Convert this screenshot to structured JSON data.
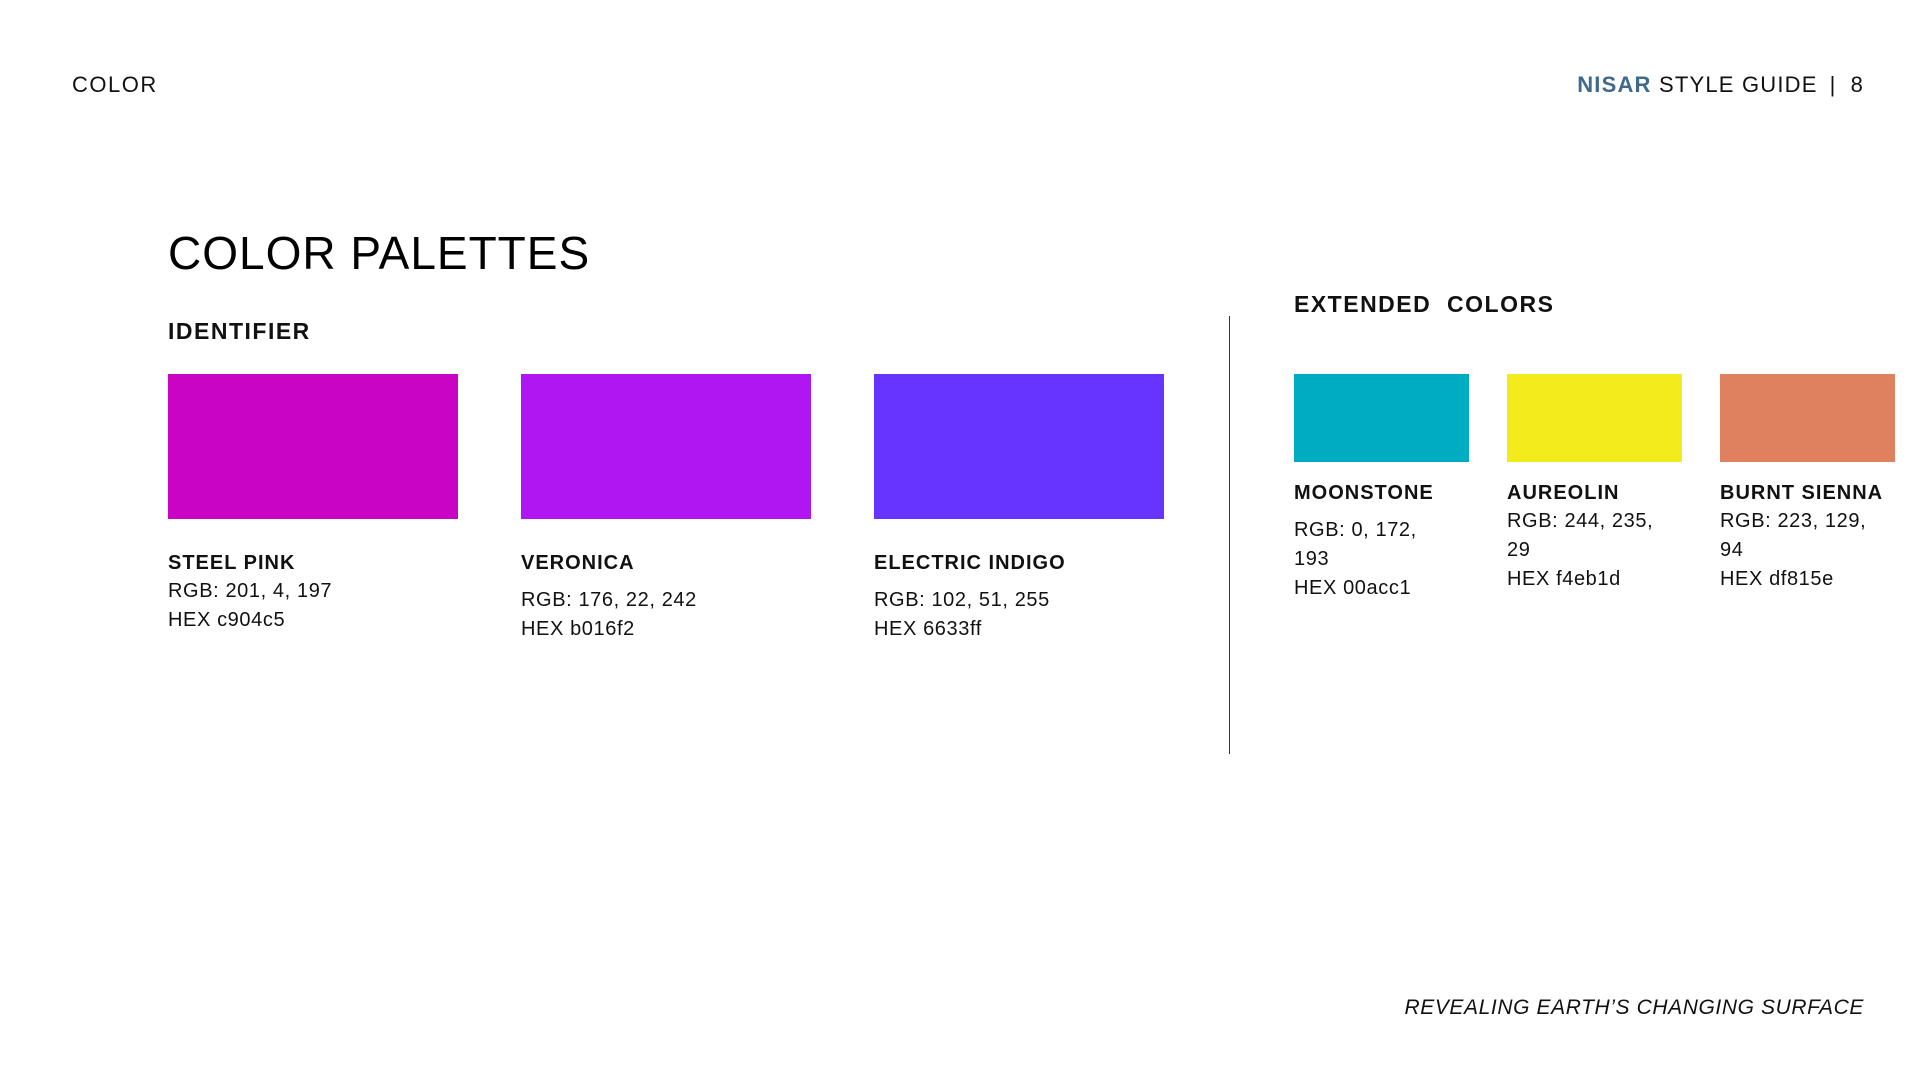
{
  "header": {
    "section": "COLOR",
    "brand": "NISAR",
    "guide": "STYLE GUIDE",
    "separator": "|",
    "page_number": "8"
  },
  "title": "COLOR PALETTES",
  "identifier": {
    "heading": "IDENTIFIER",
    "colors": [
      {
        "name": "STEEL PINK",
        "rgb": "RGB: 201, 4, 197",
        "hex": "HEX c904c5",
        "color": "#c904c5"
      },
      {
        "name": "VERONICA",
        "rgb": "RGB: 176, 22, 242",
        "hex": "HEX b016f2",
        "color": "#b016f2"
      },
      {
        "name": "ELECTRIC INDIGO",
        "rgb": "RGB: 102, 51, 255",
        "hex": "HEX 6633ff",
        "color": "#6633ff"
      }
    ]
  },
  "extended": {
    "heading": "EXTENDED  COLORS",
    "colors": [
      {
        "name": "MOONSTONE",
        "rgb": "RGB: 0, 172, 193",
        "hex": "HEX 00acc1",
        "color": "#00acc1"
      },
      {
        "name": "AUREOLIN",
        "rgb": "RGB: 244, 235, 29",
        "hex": "HEX f4eb1d",
        "color": "#f4eb1d"
      },
      {
        "name": "BURNT SIENNA",
        "rgb": "RGB: 223, 129, 94",
        "hex": "HEX df815e",
        "color": "#df815e"
      }
    ]
  },
  "footer": "REVEALING EARTH’S CHANGING SURFACE"
}
